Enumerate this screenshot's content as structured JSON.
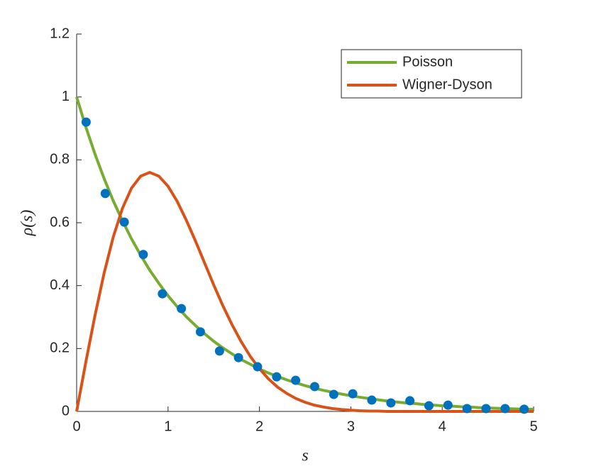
{
  "chart_data": {
    "type": "line",
    "xlabel": "s",
    "ylabel": "ρ(s)",
    "xlim": [
      0,
      5
    ],
    "ylim": [
      0,
      1.2
    ],
    "xticks": [
      0,
      1,
      2,
      3,
      4,
      5
    ],
    "yticks": [
      0,
      0.2,
      0.4,
      0.6,
      0.8,
      1,
      1.2
    ],
    "legend": "top-right",
    "x": [
      0,
      0.1,
      0.2,
      0.3,
      0.4,
      0.5,
      0.6,
      0.7,
      0.8,
      0.9,
      1,
      1.1,
      1.2,
      1.3,
      1.4,
      1.5,
      1.6,
      1.7,
      1.8,
      1.9,
      2,
      2.1,
      2.2,
      2.3,
      2.4,
      2.5,
      2.6,
      2.7,
      2.8,
      2.9,
      3,
      3.1,
      3.2,
      3.3,
      3.4,
      3.5,
      3.6,
      3.7,
      3.8,
      3.9,
      4,
      4.1,
      4.2,
      4.3,
      4.4,
      4.5,
      4.6,
      4.7,
      4.8,
      4.9,
      5
    ],
    "series": [
      {
        "name": "Poisson",
        "color": "#77ac30",
        "values": [
          1,
          0.905,
          0.819,
          0.741,
          0.67,
          0.607,
          0.549,
          0.497,
          0.449,
          0.407,
          0.368,
          0.333,
          0.301,
          0.273,
          0.247,
          0.223,
          0.202,
          0.183,
          0.165,
          0.15,
          0.135,
          0.122,
          0.111,
          0.1,
          0.091,
          0.082,
          0.074,
          0.067,
          0.061,
          0.055,
          0.05,
          0.045,
          0.041,
          0.037,
          0.033,
          0.03,
          0.027,
          0.025,
          0.022,
          0.02,
          0.018,
          0.017,
          0.015,
          0.014,
          0.012,
          0.011,
          0.01,
          0.009,
          0.008,
          0.007,
          0.007
        ]
      },
      {
        "name": "Wigner-Dyson",
        "color": "#d95319",
        "values": [
          0,
          0.156,
          0.304,
          0.439,
          0.554,
          0.645,
          0.71,
          0.748,
          0.76,
          0.748,
          0.716,
          0.668,
          0.608,
          0.542,
          0.472,
          0.402,
          0.336,
          0.276,
          0.222,
          0.175,
          0.136,
          0.103,
          0.077,
          0.057,
          0.041,
          0.029,
          0.02,
          0.014,
          0.009,
          0.006,
          0.004,
          0.002,
          0.001,
          0.001,
          0,
          0,
          0,
          0,
          0,
          0,
          0,
          0,
          0,
          0,
          0,
          0,
          0,
          0,
          0,
          0,
          0
        ]
      }
    ],
    "points": {
      "color": "#0072bd",
      "x": [
        0.104,
        0.313,
        0.521,
        0.729,
        0.938,
        1.146,
        1.354,
        1.563,
        1.771,
        1.979,
        2.188,
        2.396,
        2.604,
        2.813,
        3.021,
        3.229,
        3.438,
        3.646,
        3.854,
        4.063,
        4.271,
        4.479,
        4.688,
        4.896
      ],
      "values": [
        0.92,
        0.693,
        0.602,
        0.499,
        0.374,
        0.327,
        0.253,
        0.192,
        0.171,
        0.142,
        0.11,
        0.099,
        0.079,
        0.054,
        0.056,
        0.036,
        0.027,
        0.034,
        0.018,
        0.02,
        0.009,
        0.009,
        0.009,
        0.007
      ]
    }
  }
}
